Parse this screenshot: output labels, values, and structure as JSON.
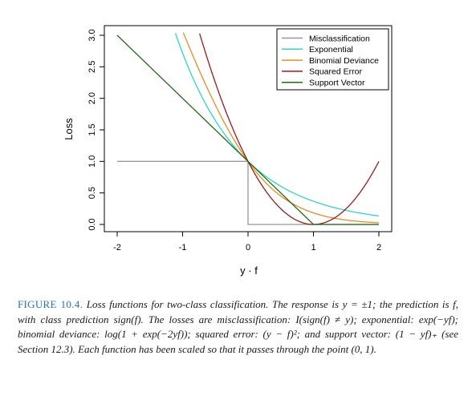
{
  "chart_data": {
    "type": "line",
    "title": "",
    "xlabel": "y · f",
    "ylabel": "Loss",
    "xlim": [
      -2,
      2
    ],
    "ylim": [
      0,
      3
    ],
    "xticks": [
      "-2",
      "-1",
      "0",
      "1",
      "2"
    ],
    "yticks": [
      "0.0",
      "0.5",
      "1.0",
      "1.5",
      "2.0",
      "2.5",
      "3.0"
    ],
    "legend_position": "top-right",
    "grid": false,
    "series": [
      {
        "name": "Misclassification",
        "color": "#999999",
        "x": [
          -2,
          0,
          0,
          2
        ],
        "y": [
          1,
          1,
          0,
          0
        ]
      },
      {
        "name": "Exponential",
        "color": "#2ed6c8",
        "formula": "exp(-x)"
      },
      {
        "name": "Binomial Deviance",
        "color": "#f08a24",
        "formula": "log2(1+exp(-2x))"
      },
      {
        "name": "Squared Error",
        "color": "#9e1a1a",
        "formula": "(1-x)^2"
      },
      {
        "name": "Support Vector",
        "color": "#1e6b14",
        "formula": "max(0,1-x)"
      }
    ]
  },
  "caption": {
    "label": "FIGURE 10.4.",
    "text": "Loss functions for two-class classification. The response is y = ±1; the prediction is f, with class prediction sign(f). The losses are misclassification: I(sign(f) ≠ y); exponential: exp(−yf); binomial deviance: log(1 + exp(−2yf)); squared error: (y − f)²; and support vector: (1 − yf)₊ (see Section 12.3). Each function has been scaled so that it passes through the point (0, 1)."
  }
}
